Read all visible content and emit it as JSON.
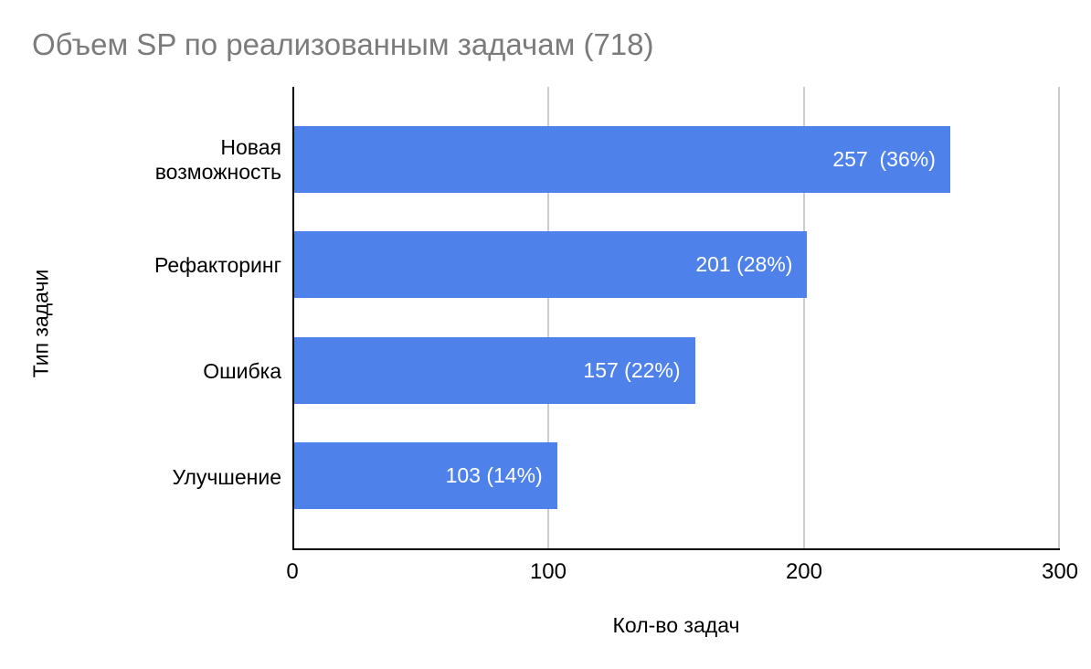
{
  "chart_data": {
    "type": "bar",
    "orientation": "horizontal",
    "title": "Объем SP по реализованным задачам (718)",
    "total_tasks": 718,
    "categories": [
      "Новая возможность",
      "Рефакторинг",
      "Ошибка",
      "Улучшение"
    ],
    "values": [
      257,
      201,
      157,
      103
    ],
    "percents": [
      36,
      28,
      22,
      14
    ],
    "bar_labels": [
      "257  (36%)",
      "201 (28%)",
      "157 (22%)",
      "103 (14%)"
    ],
    "xlabel": "Кол-во задач",
    "ylabel": "Тип задачи",
    "xlim": [
      0,
      300
    ],
    "x_ticks": [
      0,
      100,
      200,
      300
    ],
    "grid": true,
    "legend": "none",
    "colors": {
      "bar": "#4e82ea",
      "bar_label_text": "#ffffff",
      "title_text": "#7b7b7b",
      "axis_text": "#000000",
      "gridline": "#cccccc",
      "axis_line": "#000000",
      "background": "#ffffff"
    }
  }
}
